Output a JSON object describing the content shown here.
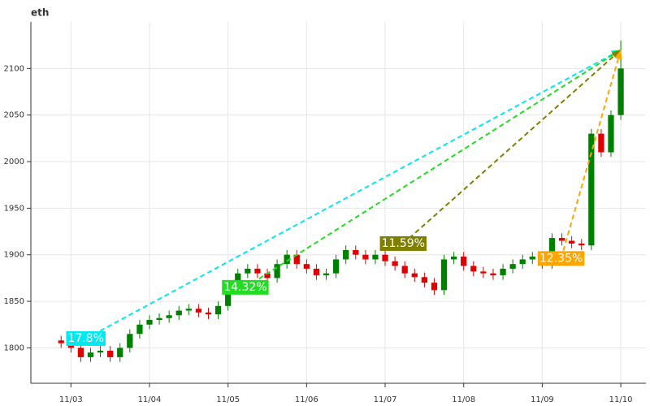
{
  "chart_data": {
    "type": "candlestick",
    "title": "eth",
    "x": [
      -0.125,
      0,
      0.125,
      0.25,
      0.375,
      0.5,
      0.625,
      0.75,
      0.875,
      1,
      1.125,
      1.25,
      1.375,
      1.5,
      1.625,
      1.75,
      1.875,
      2,
      2.125,
      2.25,
      2.375,
      2.5,
      2.625,
      2.75,
      2.875,
      3,
      3.125,
      3.25,
      3.375,
      3.5,
      3.625,
      3.75,
      3.875,
      4,
      4.125,
      4.25,
      4.375,
      4.5,
      4.625,
      4.75,
      4.875,
      5,
      5.125,
      5.25,
      5.375,
      5.5,
      5.625,
      5.75,
      5.875,
      6,
      6.125,
      6.25,
      6.375,
      6.5,
      6.625,
      6.75,
      6.875,
      7
    ],
    "open": [
      1808,
      1805,
      1800,
      1790,
      1795,
      1797,
      1790,
      1800,
      1815,
      1825,
      1830,
      1832,
      1835,
      1840,
      1842,
      1838,
      1836,
      1845,
      1862,
      1880,
      1885,
      1880,
      1875,
      1890,
      1900,
      1890,
      1885,
      1878,
      1880,
      1895,
      1905,
      1900,
      1895,
      1900,
      1893,
      1888,
      1880,
      1876,
      1870,
      1862,
      1895,
      1898,
      1888,
      1882,
      1880,
      1878,
      1885,
      1890,
      1895,
      1898,
      1890,
      1918,
      1915,
      1912,
      1910,
      2030,
      2010,
      2050
    ],
    "high": [
      1813,
      1810,
      1805,
      1800,
      1802,
      1802,
      1805,
      1820,
      1830,
      1835,
      1837,
      1840,
      1845,
      1847,
      1847,
      1843,
      1850,
      1867,
      1885,
      1890,
      1890,
      1885,
      1895,
      1905,
      1905,
      1895,
      1890,
      1885,
      1900,
      1910,
      1910,
      1905,
      1905,
      1905,
      1898,
      1893,
      1885,
      1881,
      1875,
      1900,
      1903,
      1903,
      1893,
      1887,
      1885,
      1890,
      1895,
      1900,
      1903,
      1903,
      1923,
      1923,
      1920,
      1917,
      2035,
      2035,
      2055,
      2130
    ],
    "low": [
      1800,
      1795,
      1785,
      1785,
      1790,
      1785,
      1785,
      1795,
      1810,
      1820,
      1825,
      1827,
      1830,
      1835,
      1833,
      1831,
      1831,
      1840,
      1857,
      1875,
      1875,
      1870,
      1870,
      1885,
      1885,
      1880,
      1873,
      1873,
      1875,
      1890,
      1895,
      1890,
      1890,
      1888,
      1883,
      1875,
      1871,
      1865,
      1857,
      1857,
      1890,
      1883,
      1877,
      1875,
      1873,
      1873,
      1880,
      1885,
      1890,
      1885,
      1885,
      1910,
      1907,
      1905,
      1905,
      2005,
      2005,
      2045
    ],
    "close": [
      1805,
      1800,
      1790,
      1795,
      1797,
      1790,
      1800,
      1815,
      1825,
      1830,
      1832,
      1835,
      1840,
      1842,
      1838,
      1836,
      1845,
      1862,
      1880,
      1885,
      1880,
      1875,
      1890,
      1900,
      1890,
      1885,
      1878,
      1880,
      1895,
      1905,
      1900,
      1895,
      1900,
      1893,
      1888,
      1880,
      1876,
      1870,
      1862,
      1895,
      1898,
      1888,
      1882,
      1880,
      1878,
      1885,
      1890,
      1895,
      1898,
      1890,
      1918,
      1915,
      1912,
      1910,
      2030,
      2010,
      2050,
      2100
    ],
    "up_color": "#008000",
    "down_color": "#e00000",
    "xlim": [
      -0.51,
      7.32
    ],
    "ylim": [
      1762,
      2150
    ],
    "xticks": [
      {
        "value": 0,
        "label": "11/03"
      },
      {
        "value": 1,
        "label": "11/04"
      },
      {
        "value": 2,
        "label": "11/05"
      },
      {
        "value": 3,
        "label": "11/06"
      },
      {
        "value": 4,
        "label": "11/07"
      },
      {
        "value": 5,
        "label": "11/08"
      },
      {
        "value": 6,
        "label": "11/09"
      },
      {
        "value": 7,
        "label": "11/10"
      }
    ],
    "yticks": [
      1800,
      1850,
      1900,
      1950,
      2000,
      2050,
      2100
    ],
    "grid": true,
    "annotations": [
      {
        "text": "17.8%",
        "color": "#00e8f0",
        "x": 0.19,
        "y": 1810,
        "target": [
          7.0,
          2120
        ]
      },
      {
        "text": "14.32%",
        "color": "#22dd22",
        "x": 2.22,
        "y": 1865,
        "target": [
          7.0,
          2120
        ]
      },
      {
        "text": "11.59%",
        "color": "#808000",
        "x": 4.23,
        "y": 1912,
        "target": [
          7.0,
          2120
        ]
      },
      {
        "text": "12.35%",
        "color": "#ffa500",
        "x": 6.24,
        "y": 1896,
        "target": [
          7.0,
          2120
        ]
      }
    ]
  }
}
